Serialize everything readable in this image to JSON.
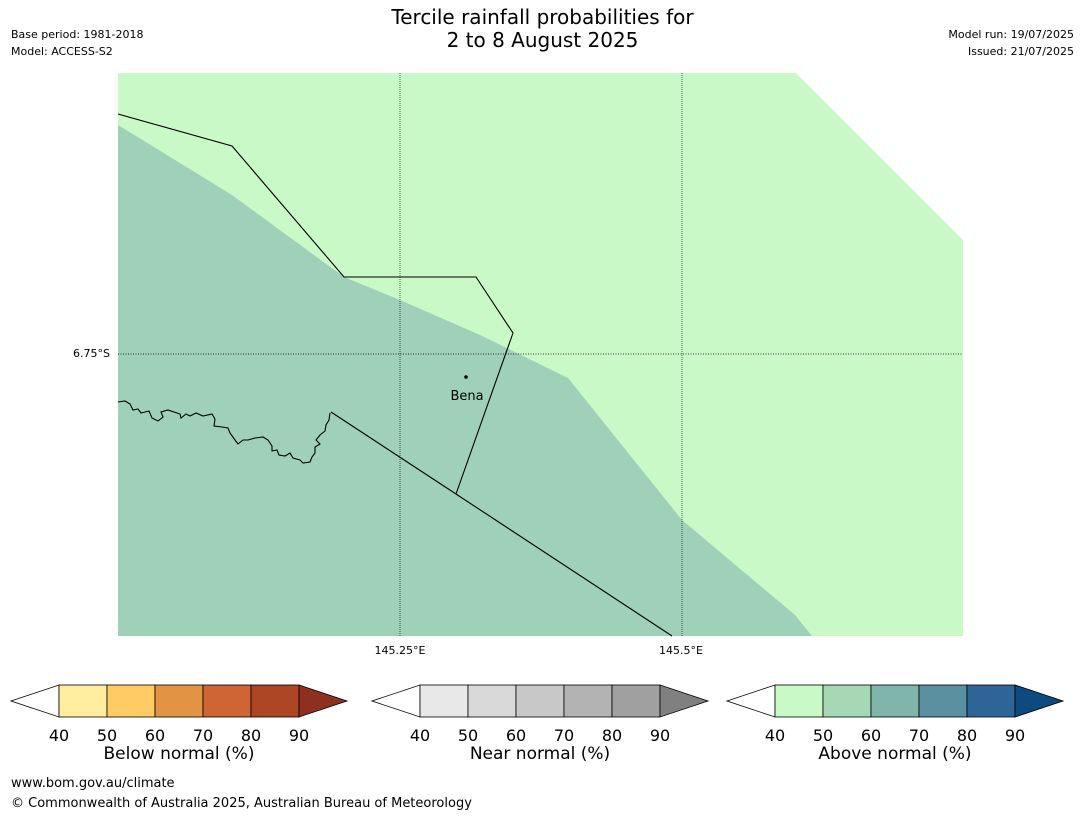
{
  "header": {
    "title_line1": "Tercile rainfall probabilities for",
    "title_line2": "2 to 8 August 2025",
    "base_period": "Base period: 1981-2018",
    "model": "Model: ACCESS-S2",
    "model_run": "Model run: 19/07/2025",
    "issued": "Issued: 21/07/2025"
  },
  "map": {
    "lat_label": "6.75°S",
    "lon_labels": [
      "145.25°E",
      "145.5°E"
    ],
    "place": "Bena",
    "colors": {
      "above_40_50": "#caf9c8",
      "above_50_60": "#9fd0b9"
    }
  },
  "colorbars": [
    {
      "label": "Below normal (%)",
      "ticks": [
        "40",
        "50",
        "60",
        "70",
        "80",
        "90"
      ],
      "colors": [
        "#ffffff",
        "#ffeda0",
        "#fecb65",
        "#e29343",
        "#cf6434",
        "#ad4624",
        "#8d3020"
      ]
    },
    {
      "label": "Near normal (%)",
      "ticks": [
        "40",
        "50",
        "60",
        "70",
        "80",
        "90"
      ],
      "colors": [
        "#ffffff",
        "#e8e8e8",
        "#d9d9d9",
        "#c8c8c8",
        "#b3b3b3",
        "#a0a0a0",
        "#808080"
      ]
    },
    {
      "label": "Above normal (%)",
      "ticks": [
        "40",
        "50",
        "60",
        "70",
        "80",
        "90"
      ],
      "colors": [
        "#ffffff",
        "#caf9c8",
        "#a5d8b4",
        "#7fb5ab",
        "#5a90a0",
        "#2e6597",
        "#0c4a80"
      ]
    }
  ],
  "footer": {
    "url": "www.bom.gov.au/climate",
    "copyright": "© Commonwealth of Australia 2025, Australian Bureau of Meteorology"
  }
}
